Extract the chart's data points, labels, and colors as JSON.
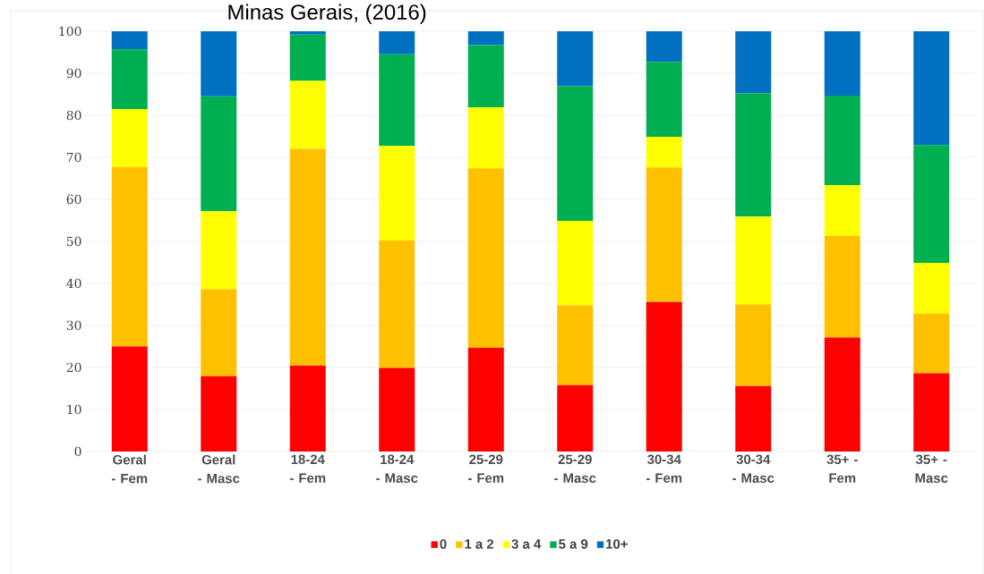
{
  "chart_data": {
    "type": "bar",
    "stacked": true,
    "title": "Minas Gerais, (2016)",
    "categories": [
      "Geral - Fem",
      "Geral - Masc",
      "18-24 - Fem",
      "18-24 - Masc",
      "25-29 - Fem",
      "25-29 - Masc",
      "30-34 - Fem",
      "30-34 - Masc",
      "35+ - Fem",
      "35+ - Masc"
    ],
    "series": [
      {
        "name": "0",
        "color": "#ff0000",
        "values": [
          25,
          17.9,
          20.4,
          19.9,
          24.7,
          15.8,
          35.6,
          15.6,
          27.1,
          18.6
        ]
      },
      {
        "name": "1 a 2",
        "color": "#ffc000",
        "values": [
          42.7,
          20.7,
          51.6,
          30.3,
          42.7,
          19.0,
          32.0,
          19.4,
          24.2,
          14.2
        ]
      },
      {
        "name": "3 a 4",
        "color": "#ffff00",
        "values": [
          13.8,
          18.6,
          16.2,
          22.5,
          14.5,
          20.1,
          7.3,
          20.9,
          12.1,
          12.1
        ]
      },
      {
        "name": "5 a 9",
        "color": "#00b050",
        "values": [
          14.2,
          27.3,
          11.0,
          21.8,
          14.8,
          32.0,
          17.8,
          29.3,
          21.3,
          28.0
        ]
      },
      {
        "name": "10+",
        "color": "#0070c0",
        "values": [
          4.3,
          15.5,
          0.8,
          5.5,
          3.3,
          13.1,
          7.3,
          14.8,
          15.3,
          27.1
        ]
      }
    ],
    "ylim": [
      0,
      100
    ],
    "yticks": [
      0,
      10,
      20,
      30,
      40,
      50,
      60,
      70,
      80,
      90,
      100
    ],
    "grid": "y",
    "legend": "bottom"
  }
}
